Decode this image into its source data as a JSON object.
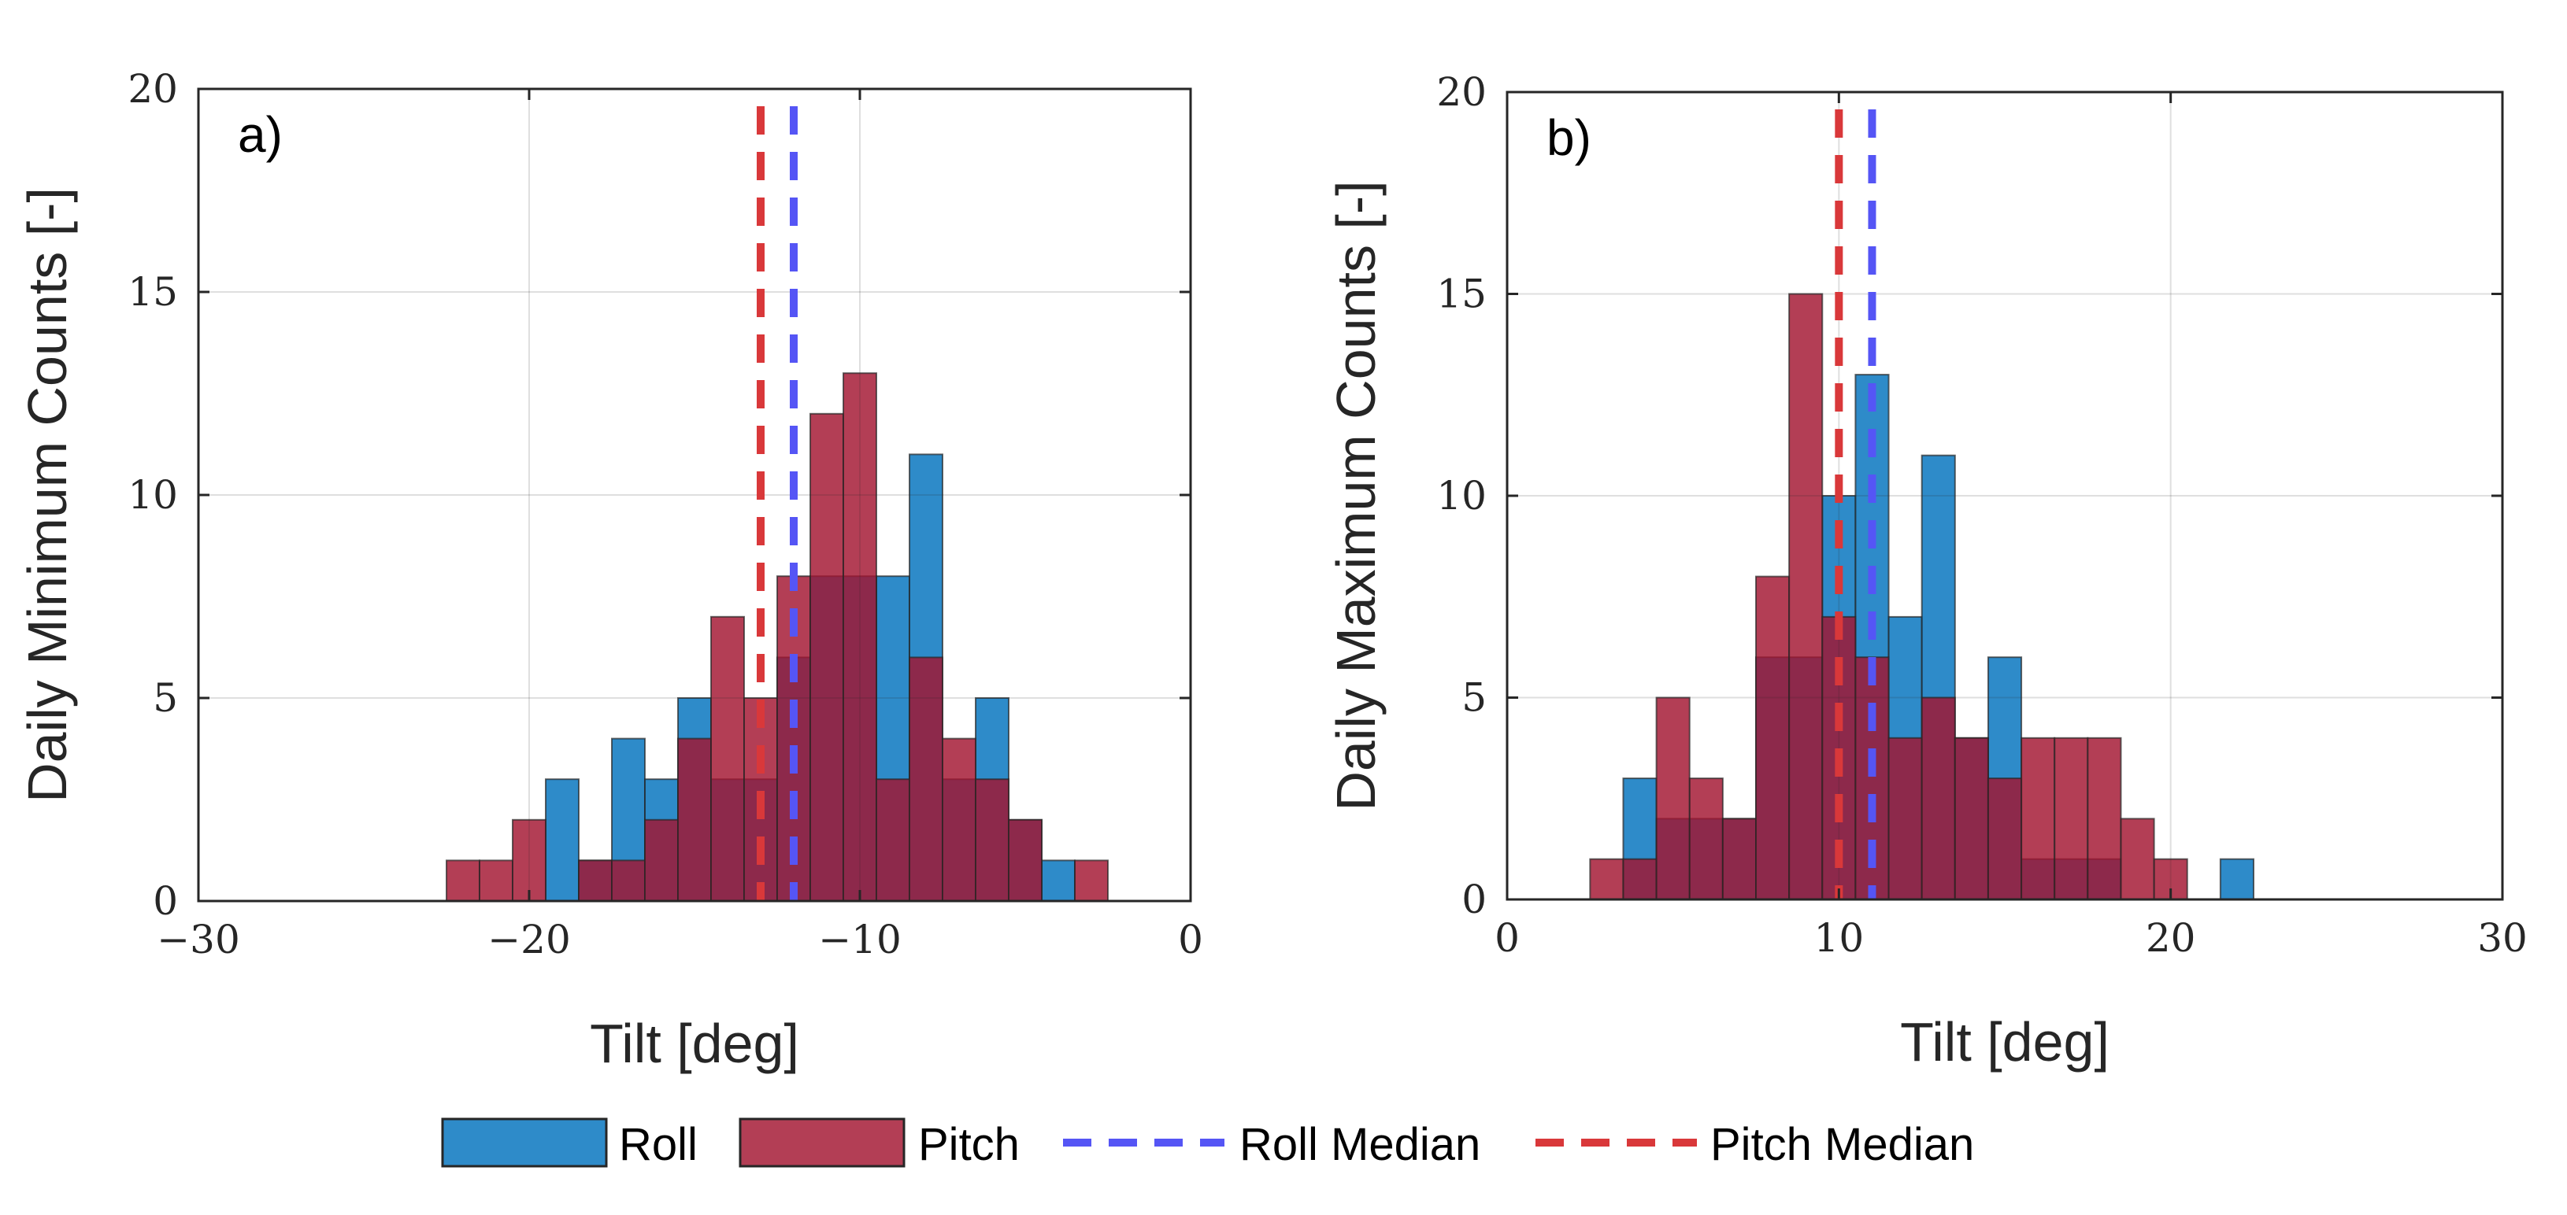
{
  "chart_data": [
    {
      "type": "bar",
      "panel_label": "a)",
      "title": "",
      "xlabel": "Tilt [deg]",
      "ylabel": "Daily Minimum Counts [-]",
      "xlim": [
        -30,
        0
      ],
      "ylim": [
        0,
        20
      ],
      "xticks": [
        -30,
        -20,
        -10,
        0
      ],
      "xtick_labels": [
        "−30",
        "−20",
        "−10",
        "0"
      ],
      "yticks": [
        0,
        5,
        10,
        15,
        20
      ],
      "ytick_labels": [
        "0",
        "5",
        "10",
        "15",
        "20"
      ],
      "grid": true,
      "bin_width": 1,
      "series": [
        {
          "name": "Roll",
          "color": "#0072BD",
          "bin_starts": [
            -19.5,
            -18.5,
            -17.5,
            -16.5,
            -15.5,
            -14.5,
            -13.5,
            -12.5,
            -11.5,
            -10.5,
            -9.5,
            -8.5,
            -7.5,
            -6.5,
            -5.5,
            -4.5
          ],
          "values": [
            3,
            1,
            4,
            3,
            5,
            3,
            3,
            6,
            8,
            8,
            8,
            11,
            3,
            5,
            2,
            1
          ]
        },
        {
          "name": "Pitch",
          "color": "#A2142F",
          "bin_starts": [
            -22.5,
            -21.5,
            -20.5,
            -18.5,
            -17.5,
            -16.5,
            -15.5,
            -14.5,
            -13.5,
            -12.5,
            -11.5,
            -10.5,
            -9.5,
            -8.5,
            -7.5,
            -6.5,
            -5.5,
            -3.5
          ],
          "values": [
            1,
            1,
            2,
            1,
            1,
            2,
            4,
            7,
            5,
            8,
            12,
            13,
            3,
            6,
            4,
            3,
            2,
            1
          ]
        }
      ],
      "medians": [
        {
          "name": "Roll Median",
          "value": -12,
          "color": "#5555F5"
        },
        {
          "name": "Pitch Median",
          "value": -13,
          "color": "#D9383A"
        }
      ]
    },
    {
      "type": "bar",
      "panel_label": "b)",
      "title": "",
      "xlabel": "Tilt [deg]",
      "ylabel": "Daily Maximum Counts [-]",
      "xlim": [
        0,
        30
      ],
      "ylim": [
        0,
        20
      ],
      "xticks": [
        0,
        10,
        20,
        30
      ],
      "xtick_labels": [
        "0",
        "10",
        "20",
        "30"
      ],
      "yticks": [
        0,
        5,
        10,
        15,
        20
      ],
      "ytick_labels": [
        "0",
        "5",
        "10",
        "15",
        "20"
      ],
      "grid": true,
      "bin_width": 1,
      "series": [
        {
          "name": "Roll",
          "color": "#0072BD",
          "bin_starts": [
            3.5,
            4.5,
            5.5,
            6.5,
            7.5,
            8.5,
            9.5,
            10.5,
            11.5,
            12.5,
            13.5,
            14.5,
            15.5,
            16.5,
            17.5,
            21.5
          ],
          "values": [
            3,
            2,
            2,
            2,
            6,
            6,
            10,
            13,
            7,
            11,
            4,
            6,
            1,
            1,
            1,
            1
          ]
        },
        {
          "name": "Pitch",
          "color": "#A2142F",
          "bin_starts": [
            2.5,
            3.5,
            4.5,
            5.5,
            6.5,
            7.5,
            8.5,
            9.5,
            10.5,
            11.5,
            12.5,
            13.5,
            14.5,
            15.5,
            16.5,
            17.5,
            18.5,
            19.5
          ],
          "values": [
            1,
            1,
            5,
            3,
            2,
            8,
            15,
            7,
            6,
            4,
            5,
            4,
            3,
            4,
            4,
            4,
            2,
            1
          ]
        }
      ],
      "medians": [
        {
          "name": "Roll Median",
          "value": 11,
          "color": "#5555F5"
        },
        {
          "name": "Pitch Median",
          "value": 10,
          "color": "#D9383A"
        }
      ]
    }
  ],
  "legend": {
    "position": "bottom-center",
    "items": [
      {
        "label": "Roll",
        "kind": "patch",
        "color": "#0072BD"
      },
      {
        "label": "Pitch",
        "kind": "patch",
        "color": "#A2142F"
      },
      {
        "label": "Roll Median",
        "kind": "dashed-line",
        "color": "#5555F5"
      },
      {
        "label": "Pitch Median",
        "kind": "dashed-line",
        "color": "#D9383A"
      }
    ]
  }
}
